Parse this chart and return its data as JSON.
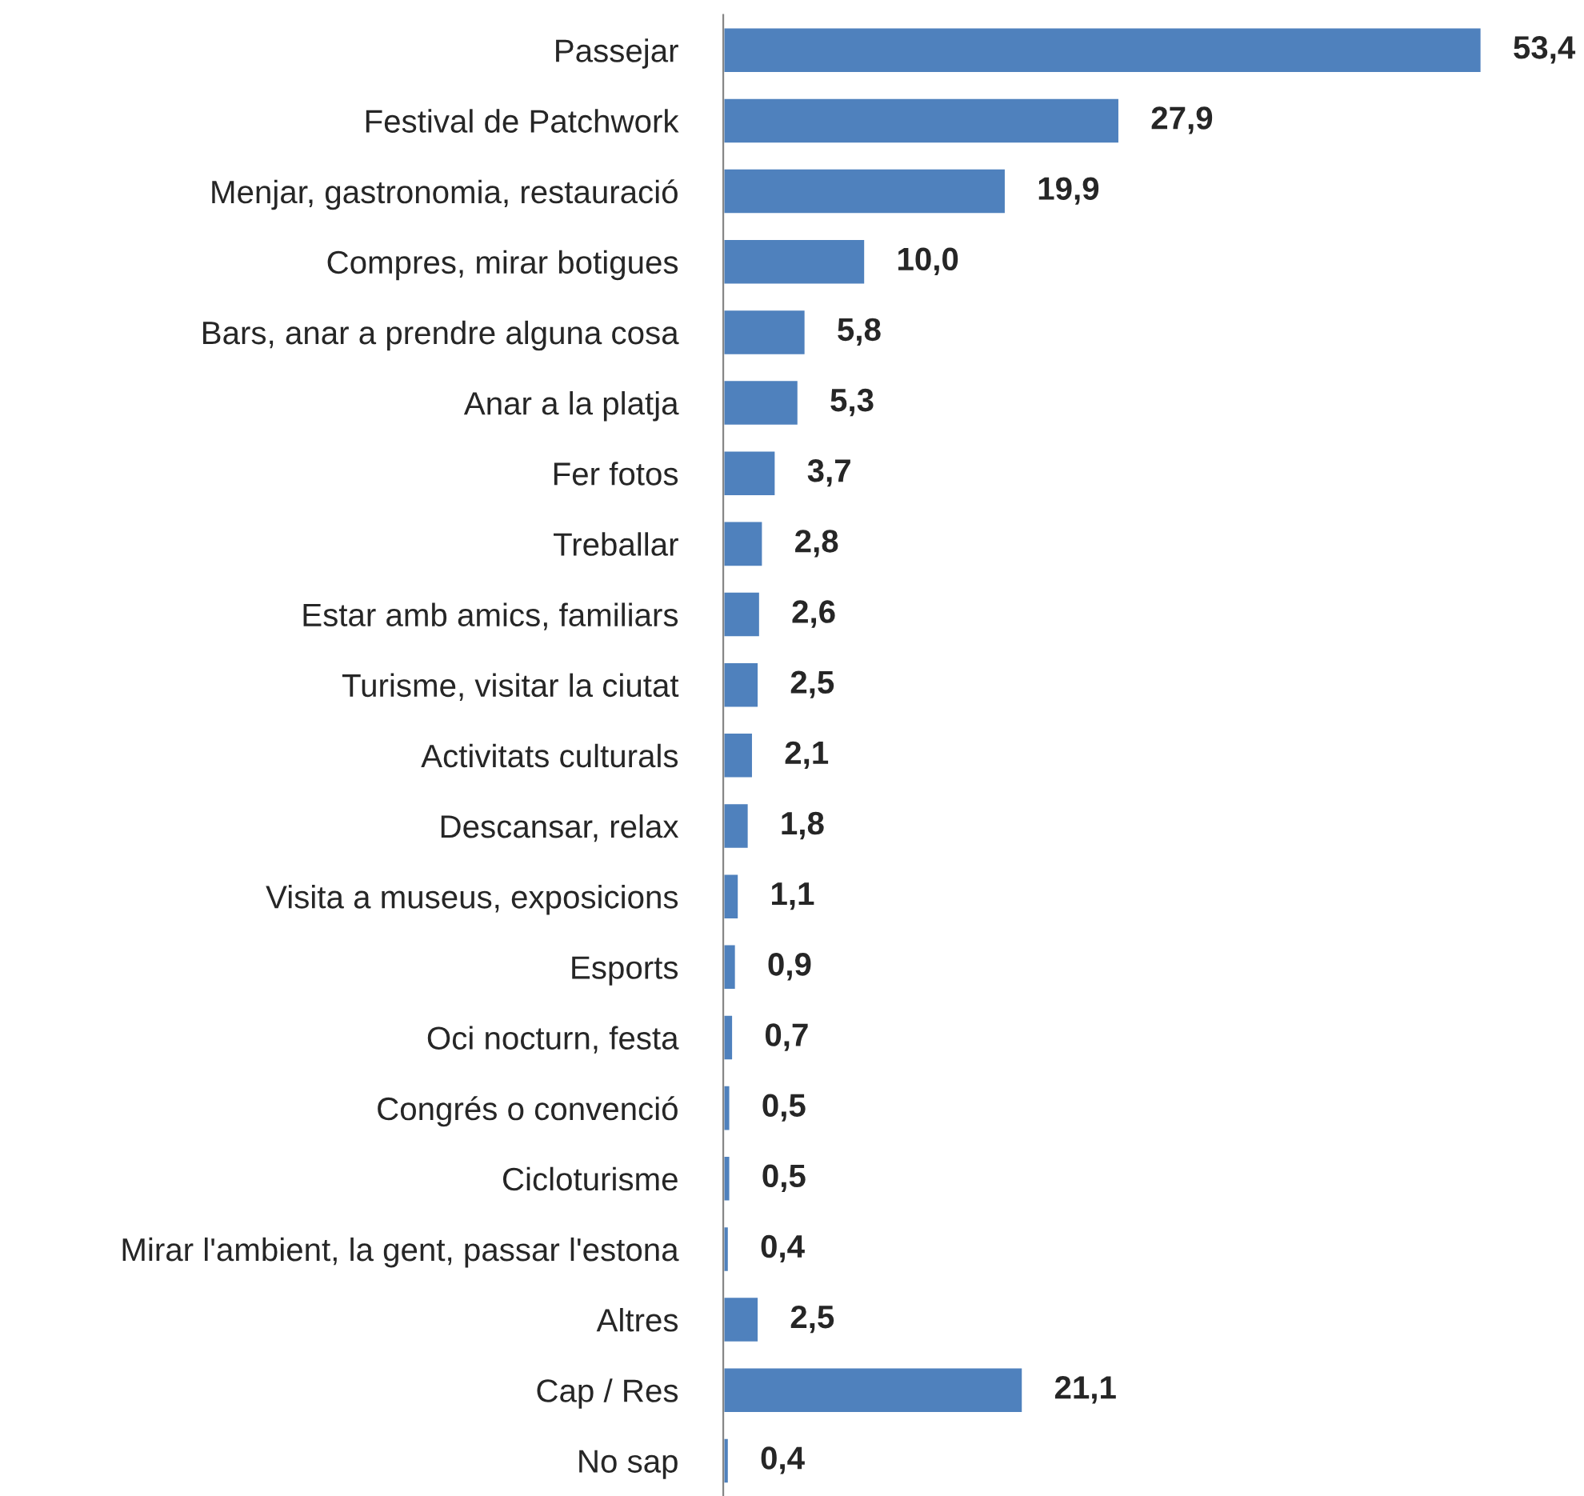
{
  "chart_data": {
    "type": "bar",
    "orientation": "horizontal",
    "color": "#4f81bd",
    "categories": [
      "Passejar",
      "Festival de Patchwork",
      "Menjar, gastronomia, restauració",
      "Compres, mirar botigues",
      "Bars, anar a prendre alguna cosa",
      "Anar a la platja",
      "Fer fotos",
      "Treballar",
      "Estar amb amics, familiars",
      "Turisme, visitar la ciutat",
      "Activitats culturals",
      "Descansar, relax",
      "Visita a museus, exposicions",
      "Esports",
      "Oci nocturn, festa",
      "Congrés o convenció",
      "Cicloturisme",
      "Mirar l'ambient, la gent, passar l'estona",
      "Altres",
      "Cap / Res",
      "No sap"
    ],
    "values": [
      53.4,
      27.9,
      19.9,
      10.0,
      5.8,
      5.3,
      3.7,
      2.8,
      2.6,
      2.5,
      2.1,
      1.8,
      1.1,
      0.9,
      0.7,
      0.5,
      0.5,
      0.4,
      2.5,
      21.1,
      0.4
    ],
    "value_labels": [
      "53,4",
      "27,9",
      "19,9",
      "10,0",
      "5,8",
      "5,3",
      "3,7",
      "2,8",
      "2,6",
      "2,5",
      "2,1",
      "1,8",
      "1,1",
      "0,9",
      "0,7",
      "0,5",
      "0,5",
      "0,4",
      "2,5",
      "21,1",
      "0,4"
    ],
    "tick_labels": "y",
    "grid": false,
    "legend": false
  }
}
